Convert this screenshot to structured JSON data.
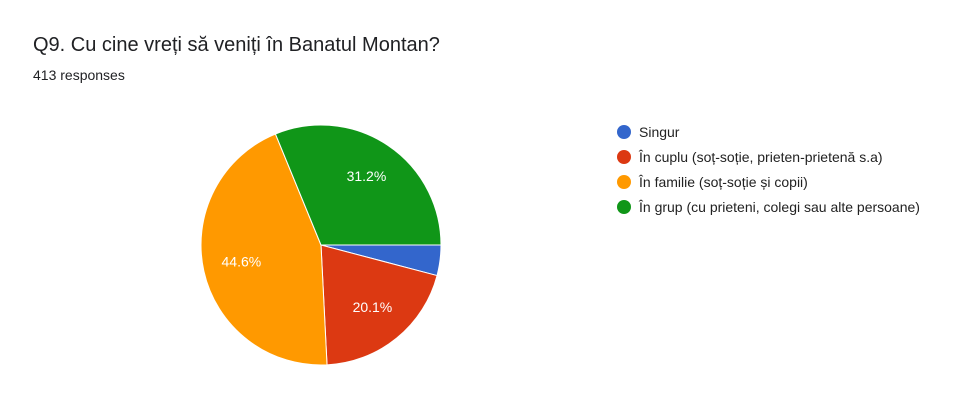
{
  "chart_data": {
    "type": "pie",
    "title": "Q9. Cu cine vreți să veniți în Banatul Montan?",
    "subtitle": "413 responses",
    "categories": [
      "Singur",
      "În cuplu (soț-soție, prieten-prietenă s.a)",
      "În familie (soț-soție și copii)",
      "În grup (cu prieteni, colegi sau alte persoane)"
    ],
    "values": [
      4.1,
      20.1,
      44.6,
      31.2
    ],
    "value_labels": [
      null,
      "20.1%",
      "44.6%",
      "31.2%"
    ],
    "colors": [
      "#3366cc",
      "#dc3912",
      "#ff9900",
      "#109618"
    ],
    "legend": "right"
  }
}
